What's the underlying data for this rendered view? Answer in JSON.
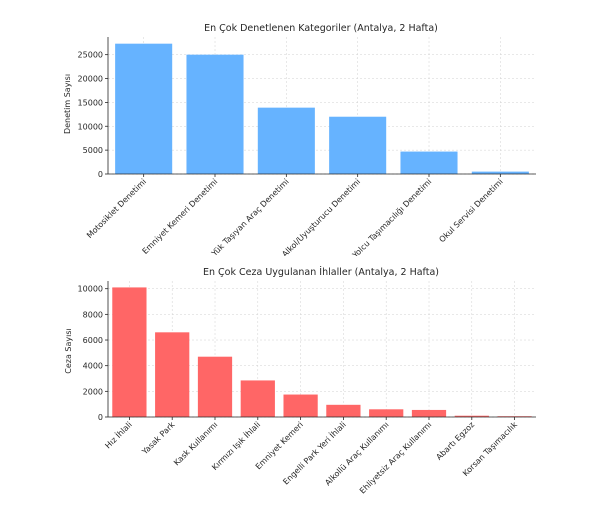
{
  "chart_data": [
    {
      "type": "bar",
      "title": "En Çok Denetlenen Kategoriler (Antalya, 2 Hafta)",
      "xlabel": "",
      "ylabel": "Denetim Sayısı",
      "categories": [
        "Motosiklet Denetimi",
        "Emniyet Kemeri Denetimi",
        "Yük Taşıyan Araç Denetimi",
        "Alkol/Uyuşturucu Denetimi",
        "Yolcu Taşımacılığı Denetimi",
        "Okul Servisi Denetimi"
      ],
      "values": [
        27300,
        25000,
        13900,
        12000,
        4700,
        500
      ],
      "ylim": [
        0,
        28700
      ],
      "yticks": [
        0,
        5000,
        10000,
        15000,
        20000,
        25000
      ],
      "grid": true,
      "color": "#66b3ff"
    },
    {
      "type": "bar",
      "title": "En Çok Ceza Uygulanan İhlaller (Antalya, 2 Hafta)",
      "xlabel": "",
      "ylabel": "Ceza Sayısı",
      "categories": [
        "Hız İhlali",
        "Yasak Park",
        "Kask Kullanımı",
        "Kırmızı Işık İhlali",
        "Emniyet Kemeri",
        "Engelli Park Yeri İhlali",
        "Alkollü Araç Kullanımı",
        "Ehliyetsiz Araç Kullanımı",
        "Abartı Egzoz",
        "Korsan Taşımacılık"
      ],
      "values": [
        10100,
        6600,
        4700,
        2850,
        1750,
        950,
        600,
        550,
        100,
        60
      ],
      "ylim": [
        0,
        10600
      ],
      "yticks": [
        0,
        2000,
        4000,
        6000,
        8000,
        10000
      ],
      "grid": true,
      "color": "#ff6666"
    }
  ]
}
